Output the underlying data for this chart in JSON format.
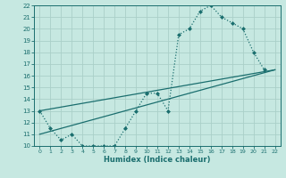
{
  "xlabel": "Humidex (Indice chaleur)",
  "xlim": [
    -0.5,
    22.5
  ],
  "ylim": [
    10,
    22
  ],
  "xticks": [
    0,
    1,
    2,
    3,
    4,
    5,
    6,
    7,
    8,
    9,
    10,
    11,
    12,
    13,
    14,
    15,
    16,
    17,
    18,
    19,
    20,
    21,
    22
  ],
  "yticks": [
    10,
    11,
    12,
    13,
    14,
    15,
    16,
    17,
    18,
    19,
    20,
    21,
    22
  ],
  "bg_color": "#c6e8e1",
  "line_color": "#1a6e6e",
  "grid_color": "#aad0c8",
  "curve1_x": [
    0,
    1,
    2,
    3,
    4,
    5,
    6,
    7,
    8,
    9,
    10,
    11,
    12,
    13,
    14,
    15,
    16,
    17,
    18,
    19,
    20,
    21
  ],
  "curve1_y": [
    13,
    11.5,
    10.5,
    11,
    10,
    10,
    10,
    10,
    11.5,
    13,
    14.5,
    14.5,
    13,
    19.5,
    20,
    21.5,
    22,
    21,
    20.5,
    20,
    18,
    16.5
  ],
  "curve2_x": [
    0,
    22
  ],
  "curve2_y": [
    11,
    16.5
  ],
  "curve3_x": [
    0,
    22
  ],
  "curve3_y": [
    13,
    16.5
  ]
}
